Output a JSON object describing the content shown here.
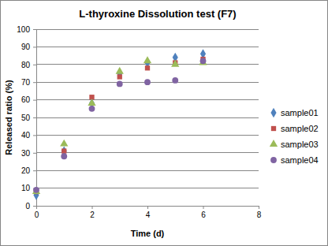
{
  "chart_data": {
    "type": "scatter",
    "title": "L-thyroxine Dissolution test (F7)",
    "x_label": "Time (d)",
    "y_label": "Released ratio (%)",
    "x": [
      0,
      1,
      2,
      3,
      4,
      5,
      6
    ],
    "series": [
      {
        "name": "sample01",
        "color": "#4f81bd",
        "marker": "diamond",
        "values": [
          6,
          31,
          58,
          75,
          81,
          84,
          86
        ]
      },
      {
        "name": "sample02",
        "color": "#c0504d",
        "marker": "square",
        "values": [
          8,
          31,
          61.5,
          73,
          78,
          81,
          83
        ]
      },
      {
        "name": "sample03",
        "color": "#9bbb59",
        "marker": "triangle",
        "values": [
          8,
          35,
          58,
          76,
          82,
          80,
          81
        ]
      },
      {
        "name": "sample04",
        "color": "#8064a2",
        "marker": "circle",
        "values": [
          9,
          28,
          55,
          69,
          70,
          71,
          82
        ]
      }
    ],
    "xlim": [
      0,
      8
    ],
    "xticks": [
      0,
      2,
      4,
      6,
      8
    ],
    "ylim": [
      0,
      100
    ],
    "yticks": [
      0,
      10,
      20,
      30,
      40,
      50,
      60,
      70,
      80,
      90,
      100
    ],
    "grid": true,
    "legend": "right"
  }
}
